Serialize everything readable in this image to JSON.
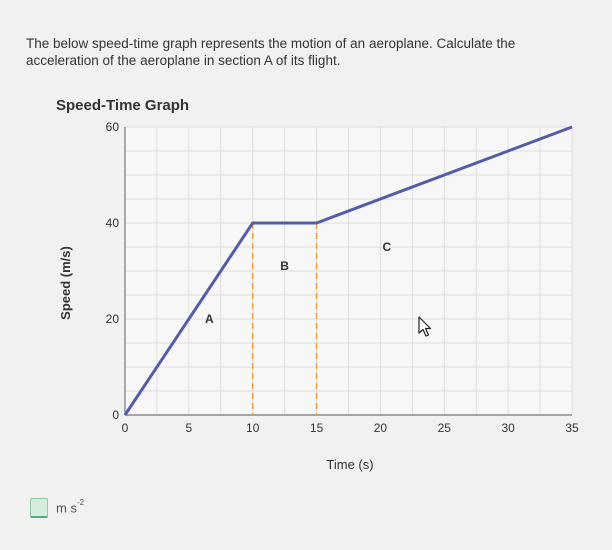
{
  "question": {
    "text": "The below speed-time graph represents the motion of an aeroplane. Calculate the acceleration of the aeroplane in section A of its flight."
  },
  "answer": {
    "unit_base": "m s",
    "unit_exponent": "-2",
    "value": ""
  },
  "chart_data": {
    "type": "line",
    "title": "Speed-Time Graph",
    "xlabel": "Time (s)",
    "ylabel": "Speed (m/s)",
    "xlim": [
      0,
      35
    ],
    "ylim": [
      0,
      60
    ],
    "x_ticks": [
      0,
      5,
      10,
      15,
      20,
      25,
      30,
      35
    ],
    "y_ticks": [
      0,
      20,
      40,
      60
    ],
    "grid": true,
    "series": [
      {
        "points": [
          [
            0,
            0
          ],
          [
            10,
            40
          ],
          [
            15,
            40
          ],
          [
            35,
            60
          ]
        ]
      }
    ],
    "dividers_x": [
      10,
      15
    ],
    "section_labels": [
      {
        "text": "A",
        "x": 6.6,
        "y": 20
      },
      {
        "text": "B",
        "x": 12.5,
        "y": 31
      },
      {
        "text": "C",
        "x": 20.5,
        "y": 35
      }
    ],
    "colors": {
      "line": "#545ca6",
      "divider": "#e8a23a",
      "grid": "#dcdcdc",
      "plot_bg": "#f7f7f7"
    }
  }
}
